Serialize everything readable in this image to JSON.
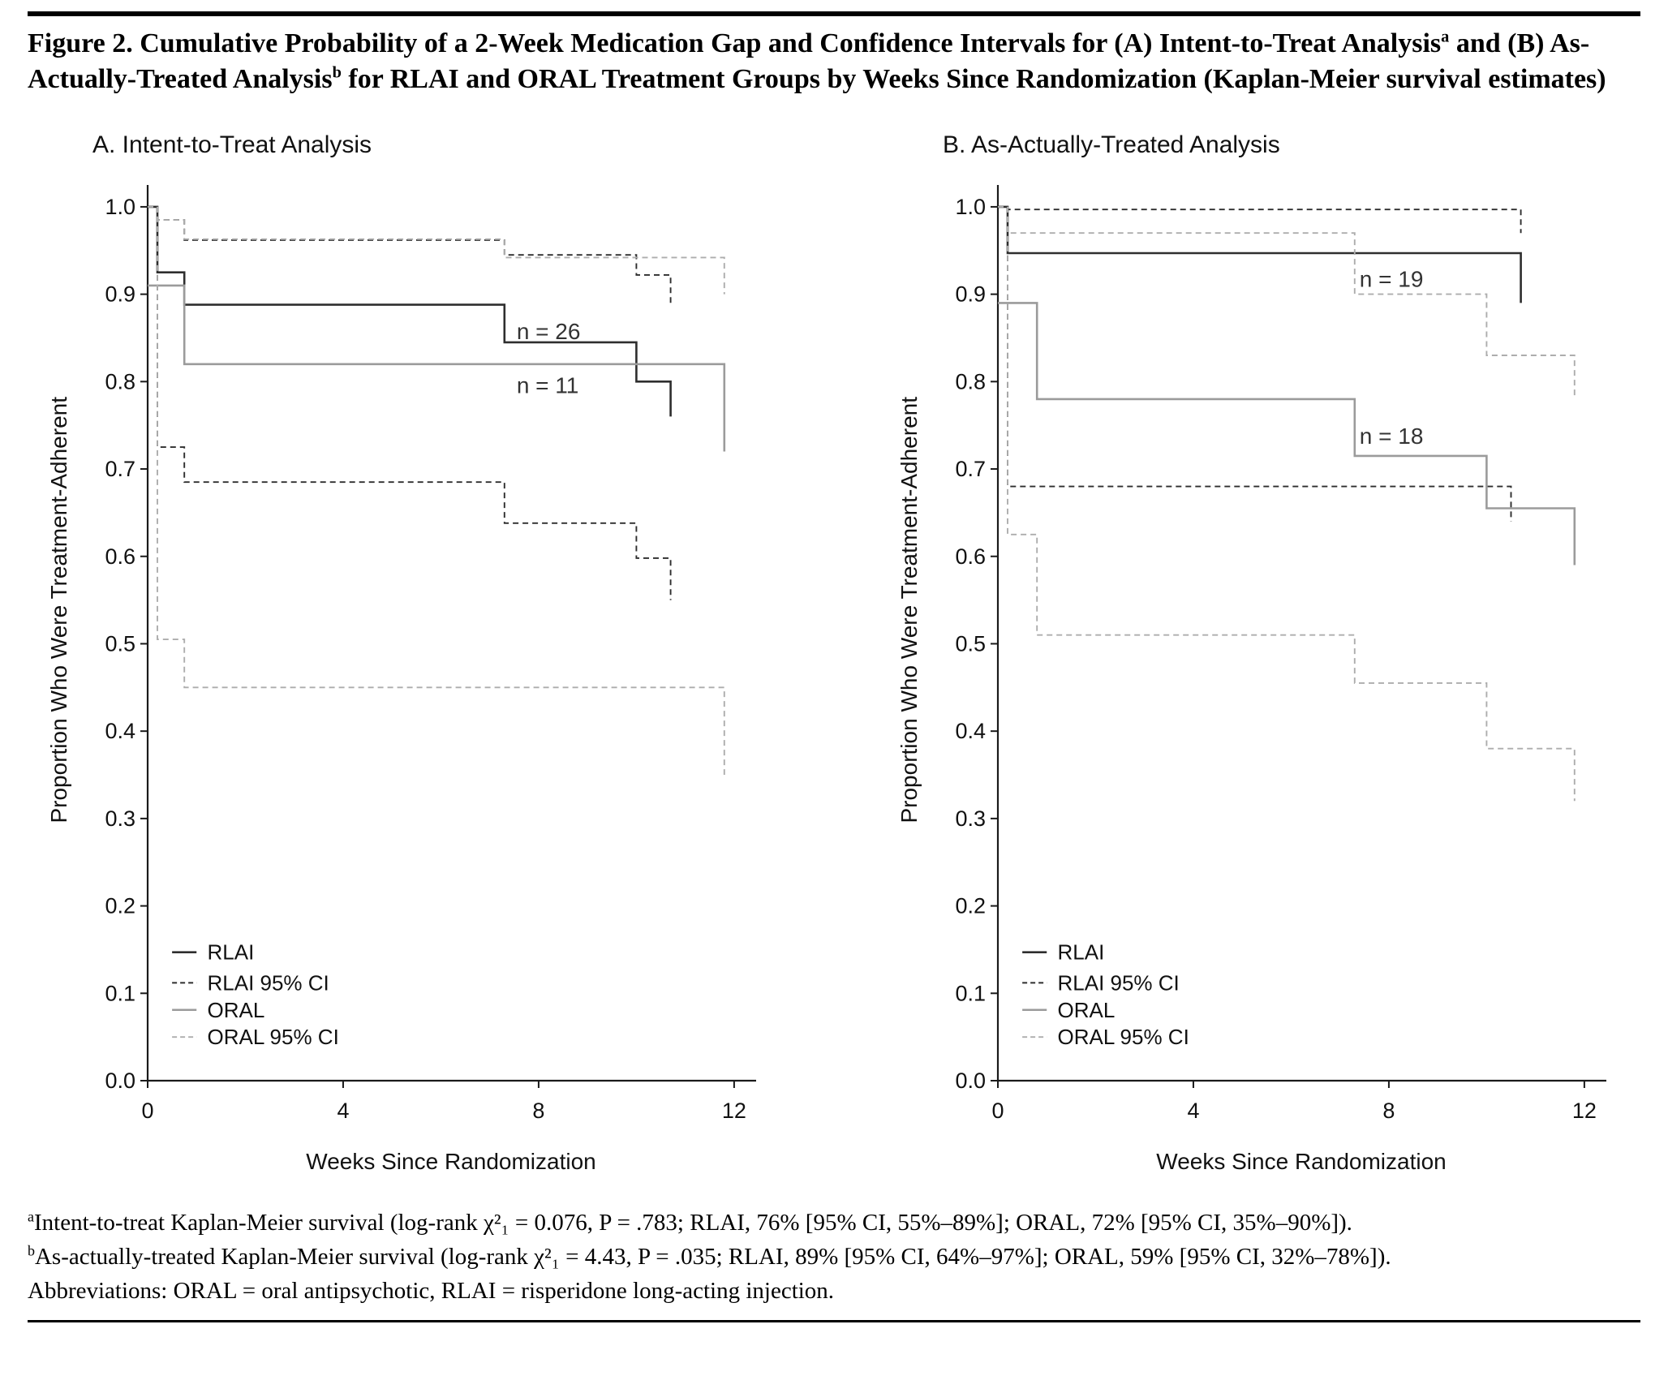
{
  "figure": {
    "title_parts": {
      "p1": "Figure 2. Cumulative Probability of a 2-Week Medication Gap and Confidence Intervals for (A) Intent-to-Treat Analysis",
      "sup1": "a",
      "p2": " and (B) As-Actually-Treated Analysis",
      "sup2": "b",
      "p3": " for RLAI and ORAL Treatment Groups by Weeks Since Randomization (Kaplan-Meier survival estimates)"
    },
    "footnotes": [
      {
        "sup": "a",
        "text": "Intent-to-treat Kaplan-Meier survival (log-rank χ²₁ = 0.076, P = .783; RLAI, 76% [95% CI, 55%–89%]; ORAL, 72% [95% CI, 35%–90%])."
      },
      {
        "sup": "b",
        "text": "As-actually-treated Kaplan-Meier survival (log-rank χ²₁ = 4.43, P = .035; RLAI, 89% [95% CI, 64%–97%]; ORAL, 59% [95% CI, 32%–78%])."
      },
      {
        "sup": "",
        "text": "Abbreviations: ORAL = oral antipsychotic, RLAI = risperidone long-acting injection."
      }
    ]
  },
  "chart_data": [
    {
      "type": "line",
      "panel_label": "A. Intent-to-Treat Analysis",
      "xlabel": "Weeks Since Randomization",
      "ylabel": "Proportion Who Were Treatment-Adherent",
      "xlim": [
        0,
        12
      ],
      "ylim": [
        0.0,
        1.0
      ],
      "xticks": [
        0,
        4,
        8,
        12
      ],
      "yticks": [
        0.0,
        0.1,
        0.2,
        0.3,
        0.4,
        0.5,
        0.6,
        0.7,
        0.8,
        0.9,
        1.0
      ],
      "grid": false,
      "legend_position": "lower-left",
      "legend": [
        {
          "label": "RLAI",
          "style": "solid",
          "color": "#2e2e2e"
        },
        {
          "label": "RLAI  95% CI",
          "style": "dashed",
          "color": "#2e2e2e"
        },
        {
          "label": "ORAL",
          "style": "solid",
          "color": "#9b9b9b"
        },
        {
          "label": "ORAL 95% CI",
          "style": "dashed",
          "color": "#adadad"
        }
      ],
      "annotations": [
        {
          "text": "n = 26",
          "x": 7.55,
          "y": 0.857
        },
        {
          "text": "n = 11",
          "x": 7.55,
          "y": 0.795
        }
      ],
      "series": [
        {
          "name": "RLAI",
          "style": "solid",
          "color": "#2e2e2e",
          "points": [
            [
              0,
              1.0
            ],
            [
              0.2,
              0.925
            ],
            [
              0.75,
              0.888
            ],
            [
              7.3,
              0.845
            ],
            [
              10.0,
              0.8
            ],
            [
              10.7,
              0.76
            ]
          ]
        },
        {
          "name": "RLAI 95% CI upper",
          "style": "dashed",
          "color": "#2e2e2e",
          "points": [
            [
              0,
              1.0
            ],
            [
              0.2,
              0.985
            ],
            [
              0.75,
              0.962
            ],
            [
              7.3,
              0.945
            ],
            [
              10.0,
              0.922
            ],
            [
              10.7,
              0.89
            ]
          ]
        },
        {
          "name": "RLAI 95% CI lower",
          "style": "dashed",
          "color": "#2e2e2e",
          "points": [
            [
              0.2,
              1.0
            ],
            [
              0.2,
              0.725
            ],
            [
              0.75,
              0.685
            ],
            [
              7.3,
              0.638
            ],
            [
              10.0,
              0.598
            ],
            [
              10.7,
              0.55
            ]
          ]
        },
        {
          "name": "ORAL",
          "style": "solid",
          "color": "#9b9b9b",
          "points": [
            [
              0,
              0.91
            ],
            [
              0.75,
              0.82
            ],
            [
              11.8,
              0.72
            ]
          ]
        },
        {
          "name": "ORAL 95% CI upper",
          "style": "dashed",
          "color": "#adadad",
          "points": [
            [
              0,
              1.0
            ],
            [
              0.2,
              0.985
            ],
            [
              0.75,
              0.963
            ],
            [
              7.3,
              0.942
            ],
            [
              11.8,
              0.9
            ]
          ]
        },
        {
          "name": "ORAL 95% CI lower",
          "style": "dashed",
          "color": "#adadad",
          "points": [
            [
              0.2,
              1.0
            ],
            [
              0.2,
              0.505
            ],
            [
              0.75,
              0.45
            ],
            [
              11.8,
              0.35
            ]
          ]
        }
      ]
    },
    {
      "type": "line",
      "panel_label": "B. As-Actually-Treated Analysis",
      "xlabel": "Weeks Since Randomization",
      "ylabel": "Proportion Who Were Treatment-Adherent",
      "xlim": [
        0,
        12
      ],
      "ylim": [
        0.0,
        1.0
      ],
      "xticks": [
        0,
        4,
        8,
        12
      ],
      "yticks": [
        0.0,
        0.1,
        0.2,
        0.3,
        0.4,
        0.5,
        0.6,
        0.7,
        0.8,
        0.9,
        1.0
      ],
      "grid": false,
      "legend_position": "lower-left",
      "legend": [
        {
          "label": "RLAI",
          "style": "solid",
          "color": "#2e2e2e"
        },
        {
          "label": "RLAI  95% CI",
          "style": "dashed",
          "color": "#2e2e2e"
        },
        {
          "label": "ORAL",
          "style": "solid",
          "color": "#9b9b9b"
        },
        {
          "label": "ORAL 95% CI",
          "style": "dashed",
          "color": "#adadad"
        }
      ],
      "annotations": [
        {
          "text": "n = 19",
          "x": 7.4,
          "y": 0.917
        },
        {
          "text": "n = 18",
          "x": 7.4,
          "y": 0.737
        }
      ],
      "series": [
        {
          "name": "RLAI",
          "style": "solid",
          "color": "#2e2e2e",
          "points": [
            [
              0,
              1.0
            ],
            [
              0.2,
              0.947
            ],
            [
              10.7,
              0.89
            ]
          ]
        },
        {
          "name": "RLAI 95% CI upper",
          "style": "dashed",
          "color": "#2e2e2e",
          "points": [
            [
              0,
              1.0
            ],
            [
              0.2,
              0.997
            ],
            [
              10.7,
              0.97
            ]
          ]
        },
        {
          "name": "RLAI 95% CI lower",
          "style": "dashed",
          "color": "#2e2e2e",
          "points": [
            [
              0.2,
              1.0
            ],
            [
              0.2,
              0.68
            ],
            [
              10.5,
              0.64
            ]
          ]
        },
        {
          "name": "ORAL",
          "style": "solid",
          "color": "#9b9b9b",
          "points": [
            [
              0,
              0.89
            ],
            [
              0.8,
              0.78
            ],
            [
              7.3,
              0.715
            ],
            [
              10.0,
              0.655
            ],
            [
              11.8,
              0.59
            ]
          ]
        },
        {
          "name": "ORAL 95% CI upper",
          "style": "dashed",
          "color": "#adadad",
          "points": [
            [
              0,
              1.0
            ],
            [
              0.2,
              0.97
            ],
            [
              7.3,
              0.9
            ],
            [
              10.0,
              0.83
            ],
            [
              11.8,
              0.78
            ]
          ]
        },
        {
          "name": "ORAL 95% CI lower",
          "style": "dashed",
          "color": "#adadad",
          "points": [
            [
              0.2,
              1.0
            ],
            [
              0.2,
              0.625
            ],
            [
              0.8,
              0.51
            ],
            [
              7.3,
              0.455
            ],
            [
              10.0,
              0.38
            ],
            [
              11.8,
              0.32
            ]
          ]
        }
      ]
    }
  ]
}
